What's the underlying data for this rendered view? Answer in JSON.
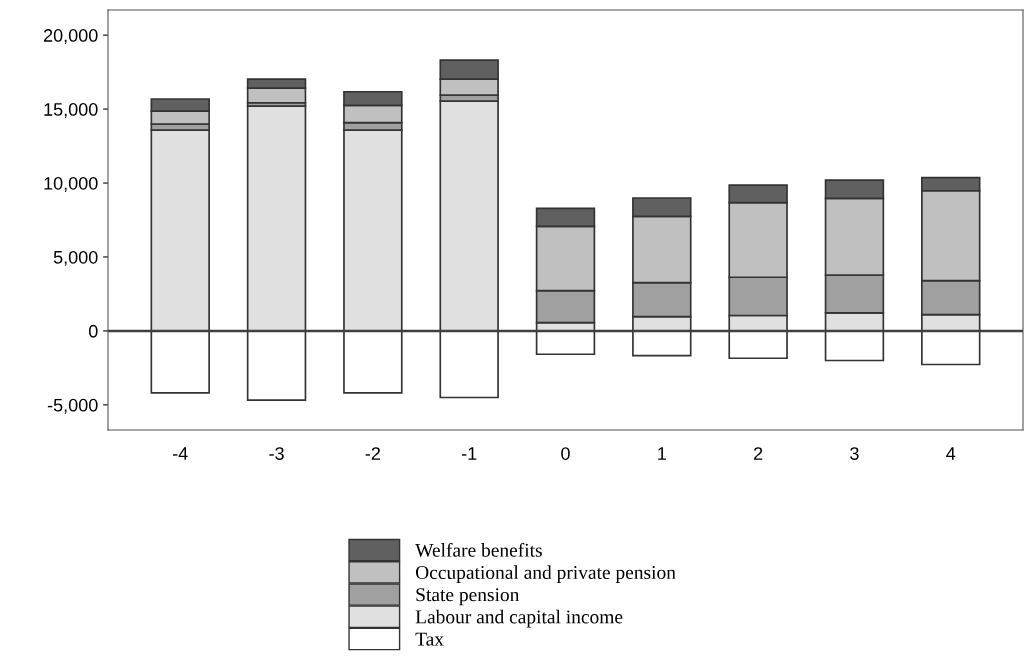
{
  "chart_data": {
    "type": "bar",
    "stacked": true,
    "categories": [
      "-4",
      "-3",
      "-2",
      "-1",
      "0",
      "1",
      "2",
      "3",
      "4"
    ],
    "series": [
      {
        "name": "Tax",
        "color": "#ffffff",
        "values": [
          -4190,
          -4680,
          -4190,
          -4500,
          -1580,
          -1670,
          -1850,
          -2000,
          -2270
        ]
      },
      {
        "name": "Labour and capital income",
        "color": "#e0e0e0",
        "values": [
          13580,
          15200,
          13580,
          15540,
          560,
          970,
          1040,
          1220,
          1100
        ]
      },
      {
        "name": "State pension",
        "color": "#a0a0a0",
        "values": [
          410,
          230,
          500,
          410,
          2170,
          2300,
          2590,
          2560,
          2300
        ]
      },
      {
        "name": "Occupational and private pension",
        "color": "#c0c0c0",
        "values": [
          870,
          990,
          1170,
          1080,
          4340,
          4480,
          5040,
          5180,
          6080
        ]
      },
      {
        "name": "Welfare benefits",
        "color": "#606060",
        "values": [
          820,
          610,
          920,
          1280,
          1220,
          1240,
          1190,
          1240,
          880
        ]
      }
    ],
    "ylim": [
      -6700,
      21700
    ],
    "yticks": [
      {
        "value": -5000,
        "label": "-5,000"
      },
      {
        "value": 0,
        "label": "0"
      },
      {
        "value": 5000,
        "label": "5,000"
      },
      {
        "value": 10000,
        "label": "10,000"
      },
      {
        "value": 15000,
        "label": "15,000"
      },
      {
        "value": 20000,
        "label": "20,000"
      }
    ],
    "ref_lines": [
      {
        "axis": "y",
        "value": 0,
        "color": "#404040"
      }
    ],
    "legend": "bottom",
    "grid": false
  }
}
